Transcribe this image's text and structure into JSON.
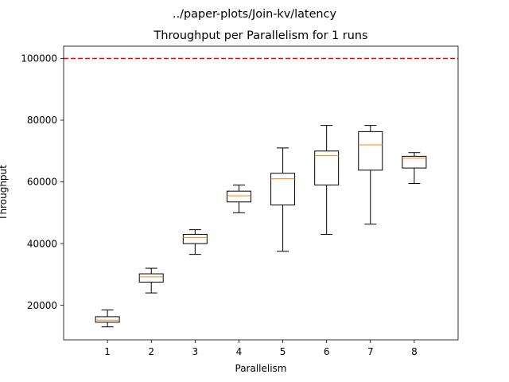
{
  "chart_data": {
    "type": "box",
    "suptitle": "../paper-plots/Join-kv/latency",
    "title": "Throughput per Parallelism for 1 runs",
    "xlabel": "Parallelism",
    "ylabel": "Throughput",
    "categories": [
      "1",
      "2",
      "3",
      "4",
      "5",
      "6",
      "7",
      "8"
    ],
    "ylim": [
      8800,
      104000
    ],
    "yticks": [
      20000,
      40000,
      60000,
      80000,
      100000
    ],
    "ytick_labels": [
      "20000",
      "40000",
      "60000",
      "80000",
      "100000"
    ],
    "reference_line": {
      "value": 100000,
      "color": "#ff0000",
      "style": "dashed"
    },
    "median_color": "#ff7f0e",
    "boxes": [
      {
        "label": "1",
        "whislo": 13000,
        "q1": 14500,
        "med": 15200,
        "q3": 16300,
        "whishi": 18500
      },
      {
        "label": "2",
        "whislo": 24000,
        "q1": 27500,
        "med": 29200,
        "q3": 30200,
        "whishi": 32000
      },
      {
        "label": "3",
        "whislo": 36500,
        "q1": 40000,
        "med": 42000,
        "q3": 43000,
        "whishi": 44500
      },
      {
        "label": "4",
        "whislo": 50000,
        "q1": 53500,
        "med": 55500,
        "q3": 57000,
        "whishi": 59000
      },
      {
        "label": "5",
        "whislo": 37500,
        "q1": 52500,
        "med": 61000,
        "q3": 62800,
        "whishi": 71000
      },
      {
        "label": "6",
        "whislo": 43000,
        "q1": 59000,
        "med": 68500,
        "q3": 70000,
        "whishi": 78300
      },
      {
        "label": "7",
        "whislo": 46300,
        "q1": 63800,
        "med": 72000,
        "q3": 76300,
        "whishi": 78300
      },
      {
        "label": "8",
        "whislo": 59500,
        "q1": 64500,
        "med": 67700,
        "q3": 68300,
        "whishi": 69500
      }
    ]
  }
}
